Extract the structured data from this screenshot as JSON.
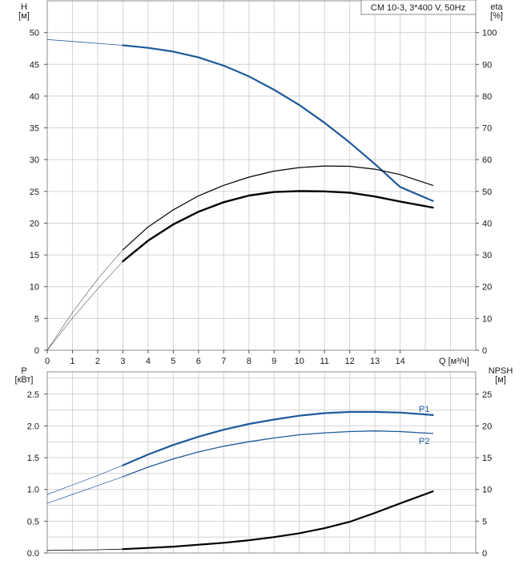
{
  "chart_data": [
    {
      "type": "line",
      "title": "CM 10-3, 3*400 V, 50Hz",
      "xlabel": "Q [м³/ч]",
      "ylabel_left": "H\n[м]",
      "ylabel_right": "eta\n[%]",
      "x_ticks": [
        0,
        1,
        2,
        3,
        4,
        5,
        6,
        7,
        8,
        9,
        10,
        11,
        12,
        13,
        14
      ],
      "y_left_ticks": [
        0,
        5,
        10,
        15,
        20,
        25,
        30,
        35,
        40,
        45,
        50
      ],
      "y_right_ticks": [
        0,
        10,
        20,
        30,
        40,
        50,
        60,
        70,
        80,
        90,
        100
      ],
      "xlim": [
        0,
        17.0
      ],
      "ylim_left": [
        0,
        55.0
      ],
      "ylim_right": [
        0,
        110.0
      ],
      "grid": true,
      "colors": {
        "head": "#1f5a9a",
        "eta": "#000000",
        "frame": "#8c8c8c"
      },
      "series": [
        {
          "axis": "left",
          "style": "head-thin",
          "x": [
            0,
            1,
            2,
            3
          ],
          "y": [
            48.9,
            48.6,
            48.3,
            48.0
          ]
        },
        {
          "axis": "left",
          "style": "head",
          "x": [
            3,
            4,
            5,
            6,
            7,
            8,
            9,
            10,
            11,
            12,
            13,
            14,
            15.3
          ],
          "y": [
            48.0,
            47.6,
            47.0,
            46.1,
            44.8,
            43.1,
            41.0,
            38.6,
            35.8,
            32.7,
            29.3,
            25.7,
            23.5
          ]
        },
        {
          "axis": "right",
          "style": "eta-thin",
          "x": [
            0,
            1,
            2,
            3
          ],
          "y": [
            0,
            11.9,
            22.4,
            31.6
          ]
        },
        {
          "axis": "right",
          "style": "eta",
          "x": [
            3,
            4,
            5,
            6,
            7,
            8,
            9,
            10,
            11,
            12,
            13,
            14,
            15.3
          ],
          "y": [
            31.6,
            38.8,
            44.2,
            48.6,
            51.9,
            54.5,
            56.4,
            57.5,
            58.0,
            57.9,
            57.0,
            55.3,
            51.9
          ]
        },
        {
          "axis": "right",
          "style": "eta-thin",
          "x": [
            0,
            1,
            2,
            3
          ],
          "y": [
            0,
            10.1,
            19.3,
            28.0
          ]
        },
        {
          "axis": "right",
          "style": "eta-bold",
          "x": [
            3,
            4,
            5,
            6,
            7,
            8,
            9,
            10,
            11,
            12,
            13,
            14,
            15.3
          ],
          "y": [
            28.0,
            34.5,
            39.6,
            43.6,
            46.6,
            48.7,
            49.8,
            50.1,
            50.0,
            49.6,
            48.4,
            46.8,
            44.9
          ]
        }
      ]
    },
    {
      "type": "line",
      "xlabel": "",
      "ylabel_left": "P\n[кВт]",
      "ylabel_right": "NPSH\n[м]",
      "y_left_ticks": [
        "0.0",
        "0.5",
        "1.0",
        "1.5",
        "2.0",
        "2.5"
      ],
      "y_right_ticks": [
        0,
        5,
        10,
        15,
        20,
        25
      ],
      "xlim": [
        0,
        17.0
      ],
      "ylim_left": [
        0,
        2.85
      ],
      "ylim_right": [
        0,
        28.5
      ],
      "grid": true,
      "colors": {
        "power": "#1f5a9a",
        "npsh": "#000000"
      },
      "series": [
        {
          "axis": "left",
          "style": "p-thin",
          "x": [
            0,
            1,
            2,
            3
          ],
          "y": [
            0.92,
            1.07,
            1.22,
            1.38
          ]
        },
        {
          "axis": "left",
          "style": "p-bold",
          "name": "P1",
          "x": [
            3,
            4,
            5,
            6,
            7,
            8,
            9,
            10,
            11,
            12,
            13,
            14,
            15.3
          ],
          "y": [
            1.38,
            1.55,
            1.7,
            1.83,
            1.94,
            2.03,
            2.1,
            2.16,
            2.2,
            2.22,
            2.22,
            2.21,
            2.17
          ]
        },
        {
          "axis": "left",
          "style": "p-thin",
          "x": [
            0,
            1,
            2,
            3
          ],
          "y": [
            0.78,
            0.92,
            1.06,
            1.2
          ]
        },
        {
          "axis": "left",
          "style": "p",
          "name": "P2",
          "x": [
            3,
            4,
            5,
            6,
            7,
            8,
            9,
            10,
            11,
            12,
            13,
            14,
            15.3
          ],
          "y": [
            1.2,
            1.35,
            1.48,
            1.59,
            1.68,
            1.75,
            1.81,
            1.86,
            1.89,
            1.91,
            1.92,
            1.91,
            1.88
          ]
        },
        {
          "axis": "right",
          "style": "npsh-thin",
          "x": [
            0,
            1,
            2,
            3
          ],
          "y": [
            0.4,
            0.45,
            0.5,
            0.6
          ]
        },
        {
          "axis": "right",
          "style": "npsh",
          "x": [
            3,
            4,
            5,
            6,
            7,
            8,
            9,
            10,
            11,
            12,
            13,
            14,
            15.3
          ],
          "y": [
            0.6,
            0.8,
            1.0,
            1.3,
            1.6,
            2.0,
            2.5,
            3.1,
            3.9,
            4.9,
            6.3,
            7.8,
            9.7
          ]
        }
      ]
    }
  ]
}
